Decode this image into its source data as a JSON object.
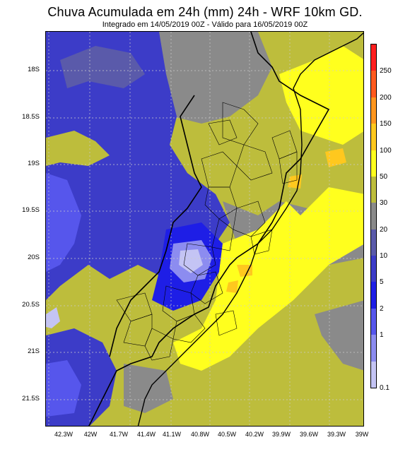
{
  "header": {
    "title": "Chuva Acumulada em 24h (mm) 24h - WRF 10km GD.",
    "subtitle": "Integrado em 14/05/2019 00Z - Válido para 16/05/2019 00Z"
  },
  "axes": {
    "lat_labels": [
      "18S",
      "18.5S",
      "19S",
      "19.5S",
      "20S",
      "20.5S",
      "21S",
      "21.5S"
    ],
    "lon_labels": [
      "42.3W",
      "42W",
      "41.7W",
      "41.4W",
      "41.1W",
      "40.8W",
      "40.5W",
      "40.2W",
      "39.9W",
      "39.6W",
      "39.3W",
      "39W"
    ]
  },
  "colorbar": {
    "levels": [
      "0.1",
      "1",
      "2",
      "5",
      "10",
      "20",
      "30",
      "50",
      "100",
      "150",
      "200",
      "250"
    ],
    "colors": [
      "#c4c4f4",
      "#8c8cf0",
      "#5656ec",
      "#1e1ee6",
      "#3c3cc8",
      "#5a5aaa",
      "#8a8a8a",
      "#bdbd3c",
      "#ffff1e",
      "#ffc81e",
      "#ff961e",
      "#ff5a1e",
      "#ff1e1e"
    ],
    "palette_names": [
      "lavender",
      "light-blue",
      "medium-blue",
      "blue",
      "dark-blue",
      "slate-blue",
      "gray",
      "olive",
      "yellow",
      "light-orange",
      "orange",
      "dark-orange",
      "red"
    ]
  },
  "map": {
    "region": "Espírito Santo state and surroundings",
    "colors": {
      "olive": "#bdbd3c",
      "yellow": "#ffff1e",
      "gray": "#8a8a8a",
      "slate": "#5a5aaa",
      "darkblue": "#3c3cc8",
      "blue": "#1e1ee6",
      "midblue": "#5656ec",
      "lightblue": "#8c8cf0",
      "lavender": "#c4c4f4",
      "orange": "#ffc81e"
    }
  }
}
